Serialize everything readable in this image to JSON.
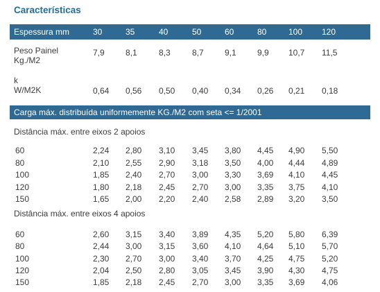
{
  "title": "Características",
  "header": {
    "label": "Espessura mm",
    "values": [
      "30",
      "35",
      "40",
      "50",
      "60",
      "80",
      "100",
      "120"
    ]
  },
  "peso": {
    "label_line1": "Peso Painel",
    "label_line2": "Kg./M2",
    "values": [
      "7,9",
      "8,1",
      "8,3",
      "8,7",
      "9,1",
      "9,9",
      "10,7",
      "11,5"
    ]
  },
  "k": {
    "label_line1": "k",
    "label_line2": "W/M2K",
    "values": [
      "0,64",
      "0,56",
      "0,50",
      "0,40",
      "0,34",
      "0,26",
      "0,21",
      "0,18"
    ]
  },
  "carga_label": "Carga máx. distribuída uniformemente KG./M2 com seta <= 1/2001",
  "section1": {
    "title": "Distância máx. entre eixos 2 apoios",
    "rows": [
      {
        "label": "60",
        "values": [
          "2,24",
          "2,80",
          "3,10",
          "3,45",
          "3,80",
          "4,45",
          "4,90",
          "5,50"
        ]
      },
      {
        "label": "80",
        "values": [
          "2,10",
          "2,55",
          "2,90",
          "3,18",
          "3,50",
          "4,00",
          "4,44",
          "4,89"
        ]
      },
      {
        "label": "100",
        "values": [
          "1,85",
          "2,40",
          "2,70",
          "3,00",
          "3,30",
          "3,69",
          "4,10",
          "4,45"
        ]
      },
      {
        "label": "120",
        "values": [
          "1,80",
          "2,18",
          "2,45",
          "2,70",
          "3,00",
          "3,35",
          "3,75",
          "4,10"
        ]
      },
      {
        "label": "150",
        "values": [
          "1,65",
          "2,00",
          "2,20",
          "2,40",
          "2,58",
          "2,89",
          "3,20",
          "3,50"
        ]
      }
    ]
  },
  "section2": {
    "title": "Distância máx. entre eixos 4 apoios",
    "rows": [
      {
        "label": "60",
        "values": [
          "2,60",
          "3,15",
          "3,40",
          "3,89",
          "4,35",
          "5,20",
          "5,80",
          "6,39"
        ]
      },
      {
        "label": "80",
        "values": [
          "2,44",
          "3,00",
          "3,15",
          "3,60",
          "4,10",
          "4,64",
          "5,10",
          "5,70"
        ]
      },
      {
        "label": "100",
        "values": [
          "2,30",
          "2,70",
          "3,00",
          "3,40",
          "3,70",
          "4,25",
          "4,75",
          "5,20"
        ]
      },
      {
        "label": "120",
        "values": [
          "2,04",
          "2,50",
          "2,80",
          "3,05",
          "3,45",
          "3,90",
          "4,30",
          "4,75"
        ]
      },
      {
        "label": "150",
        "values": [
          "1,85",
          "2,18",
          "2,45",
          "2,70",
          "3,00",
          "3,35",
          "3,69",
          "4,06"
        ]
      }
    ]
  }
}
